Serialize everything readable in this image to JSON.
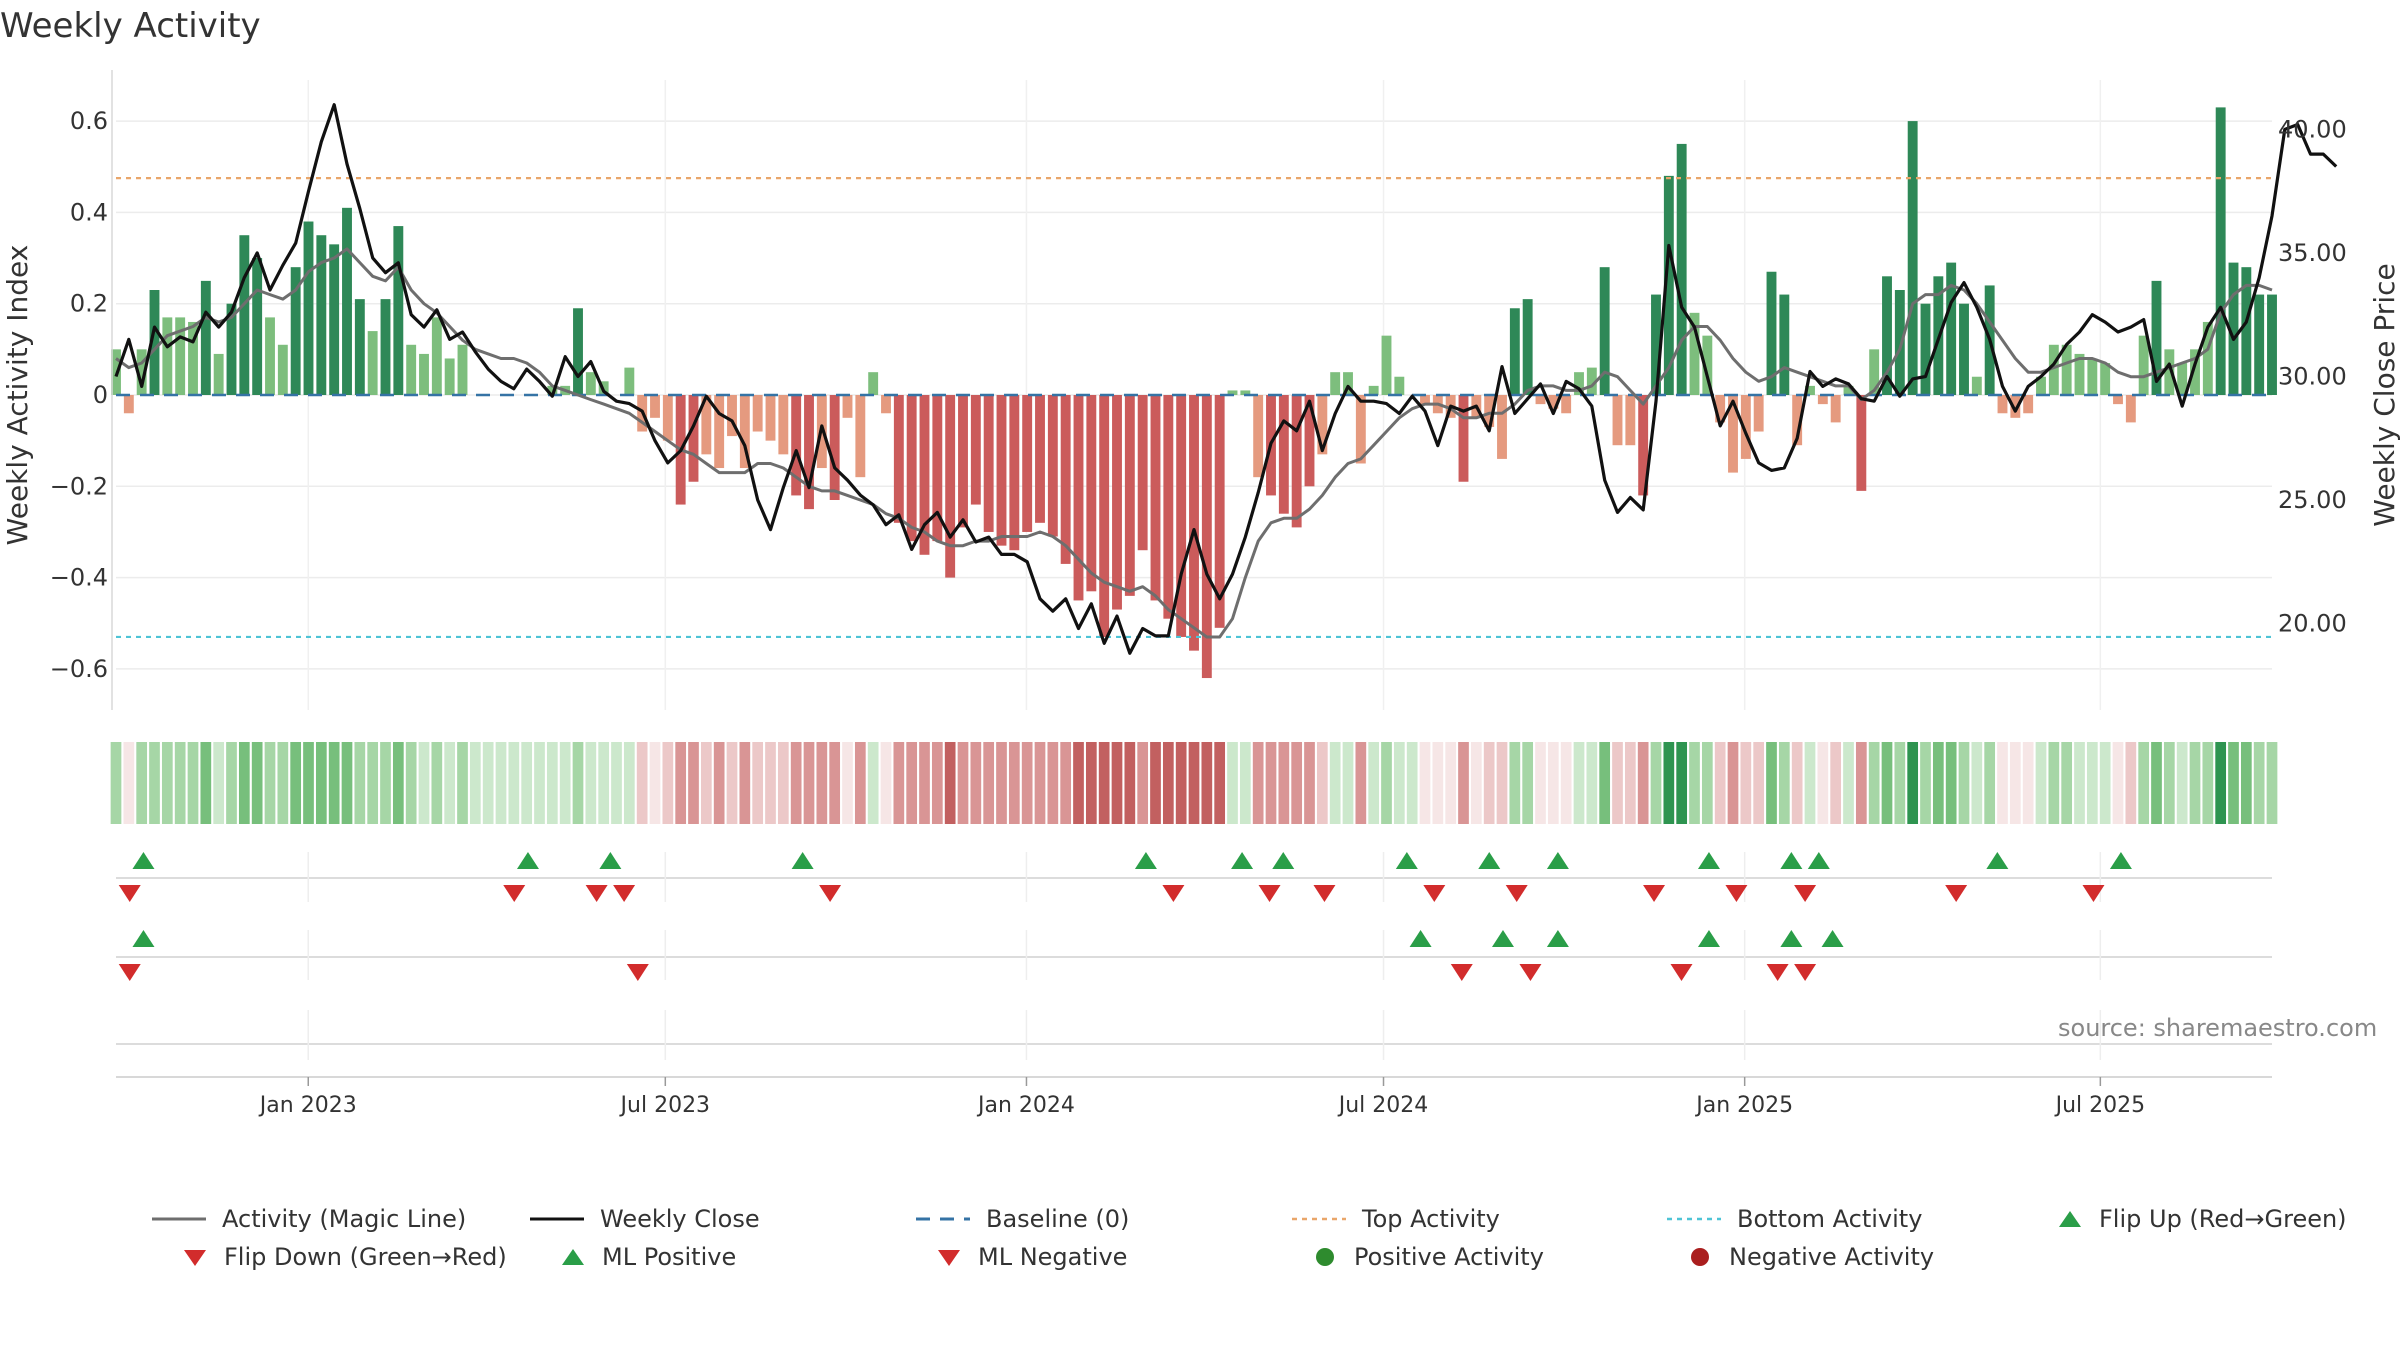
{
  "chart_data": {
    "type": "bar",
    "title": "Weekly Activity",
    "ylabel": "Weekly Activity Index",
    "y2label": "Weekly Close Price",
    "ylim": [
      -0.69,
      0.69
    ],
    "y2lim": [
      16.5,
      42.0
    ],
    "yticks": [
      "0.6",
      "0.4",
      "0.2",
      "0",
      "−0.2",
      "−0.4",
      "−0.6"
    ],
    "yticks_values": [
      0.6,
      0.4,
      0.2,
      0,
      -0.2,
      -0.4,
      -0.6
    ],
    "y2ticks": [
      "40.00",
      "35.00",
      "30.00",
      "25.00",
      "20.00"
    ],
    "y2ticks_values": [
      40,
      35,
      30,
      25,
      20
    ],
    "xlim_weeks": [
      0,
      157
    ],
    "xticks": [
      {
        "label": "Jan 2023",
        "week": 14
      },
      {
        "label": "Jul 2023",
        "week": 40
      },
      {
        "label": "Jan 2024",
        "week": 66.3
      },
      {
        "label": "Jul 2024",
        "week": 92.3
      },
      {
        "label": "Jan 2025",
        "week": 118.6
      },
      {
        "label": "Jul 2025",
        "week": 144.5
      }
    ],
    "top_activity": 0.475,
    "bottom_activity": -0.53,
    "baseline": 0,
    "activity": [
      0.1,
      -0.04,
      0.1,
      0.23,
      0.17,
      0.17,
      0.16,
      0.25,
      0.09,
      0.2,
      0.35,
      0.3,
      0.17,
      0.11,
      0.28,
      0.38,
      0.35,
      0.33,
      0.41,
      0.21,
      0.14,
      0.21,
      0.37,
      0.11,
      0.09,
      0.17,
      0.08,
      0.11,
      0.0,
      0.0,
      0.0,
      0.0,
      0.0,
      0.0,
      0.02,
      0.02,
      0.19,
      0.05,
      0.03,
      0.0,
      0.06,
      -0.08,
      -0.05,
      -0.1,
      -0.24,
      -0.19,
      -0.13,
      -0.16,
      -0.09,
      -0.16,
      -0.08,
      -0.1,
      -0.13,
      -0.22,
      -0.25,
      -0.16,
      -0.23,
      -0.05,
      -0.18,
      0.05,
      -0.04,
      -0.28,
      -0.32,
      -0.35,
      -0.32,
      -0.4,
      -0.29,
      -0.24,
      -0.3,
      -0.33,
      -0.34,
      -0.3,
      -0.28,
      -0.31,
      -0.37,
      -0.45,
      -0.43,
      -0.53,
      -0.47,
      -0.44,
      -0.34,
      -0.45,
      -0.49,
      -0.53,
      -0.56,
      -0.62,
      -0.51,
      0.01,
      0.01,
      -0.18,
      -0.22,
      -0.26,
      -0.29,
      -0.2,
      -0.13,
      0.05,
      0.05,
      -0.15,
      0.02,
      0.13,
      0.04,
      0.0,
      -0.02,
      -0.04,
      -0.05,
      -0.19,
      -0.05,
      -0.07,
      -0.14,
      0.19,
      0.21,
      -0.02,
      -0.03,
      -0.04,
      0.05,
      0.06,
      0.28,
      -0.11,
      -0.11,
      -0.22,
      0.22,
      0.48,
      0.55,
      0.18,
      0.13,
      -0.06,
      -0.17,
      -0.14,
      -0.08,
      0.27,
      0.22,
      -0.11,
      0.02,
      -0.02,
      -0.06,
      0.02,
      -0.21,
      0.1,
      0.26,
      0.23,
      0.6,
      0.2,
      0.26,
      0.29,
      0.2,
      0.04,
      0.24,
      -0.04,
      -0.05,
      -0.04,
      0.04,
      0.11,
      0.11,
      0.09,
      0.08,
      0.07,
      -0.02,
      -0.06,
      0.13,
      0.25,
      0.1,
      0.07,
      0.1,
      0.16,
      0.63,
      0.29,
      0.28,
      0.22,
      0.22
    ],
    "magic_line": [
      0.08,
      0.06,
      0.07,
      0.1,
      0.13,
      0.14,
      0.15,
      0.17,
      0.16,
      0.17,
      0.2,
      0.23,
      0.22,
      0.21,
      0.23,
      0.27,
      0.29,
      0.3,
      0.32,
      0.29,
      0.26,
      0.25,
      0.28,
      0.23,
      0.2,
      0.18,
      0.15,
      0.12,
      0.1,
      0.09,
      0.08,
      0.08,
      0.07,
      0.05,
      0.02,
      0.01,
      0.0,
      -0.01,
      -0.02,
      -0.03,
      -0.04,
      -0.06,
      -0.08,
      -0.1,
      -0.12,
      -0.13,
      -0.15,
      -0.17,
      -0.17,
      -0.17,
      -0.15,
      -0.15,
      -0.16,
      -0.18,
      -0.2,
      -0.21,
      -0.21,
      -0.22,
      -0.23,
      -0.24,
      -0.26,
      -0.27,
      -0.29,
      -0.3,
      -0.32,
      -0.33,
      -0.33,
      -0.32,
      -0.32,
      -0.31,
      -0.31,
      -0.31,
      -0.3,
      -0.31,
      -0.33,
      -0.36,
      -0.39,
      -0.41,
      -0.42,
      -0.43,
      -0.42,
      -0.44,
      -0.47,
      -0.49,
      -0.51,
      -0.53,
      -0.53,
      -0.49,
      -0.4,
      -0.32,
      -0.28,
      -0.27,
      -0.27,
      -0.25,
      -0.22,
      -0.18,
      -0.15,
      -0.14,
      -0.11,
      -0.08,
      -0.05,
      -0.03,
      -0.02,
      -0.02,
      -0.03,
      -0.05,
      -0.05,
      -0.04,
      -0.04,
      -0.02,
      0.01,
      0.02,
      0.02,
      0.01,
      0.01,
      0.02,
      0.05,
      0.04,
      0.01,
      -0.02,
      0.02,
      0.06,
      0.12,
      0.15,
      0.15,
      0.12,
      0.08,
      0.05,
      0.03,
      0.04,
      0.06,
      0.05,
      0.04,
      0.03,
      0.02,
      0.02,
      -0.01,
      0.01,
      0.05,
      0.1,
      0.2,
      0.22,
      0.22,
      0.24,
      0.23,
      0.2,
      0.16,
      0.12,
      0.08,
      0.05,
      0.05,
      0.06,
      0.07,
      0.08,
      0.08,
      0.07,
      0.05,
      0.04,
      0.04,
      0.05,
      0.06,
      0.07,
      0.08,
      0.1,
      0.18,
      0.22,
      0.24,
      0.24,
      0.23
    ],
    "weekly_close": [
      30.0,
      31.5,
      29.6,
      32.0,
      31.2,
      31.6,
      31.4,
      32.6,
      32.0,
      32.6,
      34.0,
      35.0,
      33.5,
      34.5,
      35.4,
      37.5,
      39.5,
      41.0,
      38.6,
      36.8,
      34.8,
      34.2,
      34.6,
      32.5,
      32.0,
      32.7,
      31.5,
      31.8,
      31.0,
      30.3,
      29.8,
      29.5,
      30.3,
      29.8,
      29.2,
      30.8,
      30.0,
      30.6,
      29.4,
      29.0,
      28.9,
      28.6,
      27.4,
      26.5,
      27.0,
      28.0,
      29.2,
      28.5,
      28.2,
      27.2,
      25.0,
      23.8,
      25.5,
      27.0,
      25.5,
      28.0,
      26.3,
      25.8,
      25.2,
      24.8,
      24.0,
      24.4,
      23.0,
      24.0,
      24.5,
      23.5,
      24.2,
      23.3,
      23.5,
      22.8,
      22.8,
      22.5,
      21.0,
      20.5,
      21.0,
      19.8,
      20.8,
      19.2,
      20.3,
      18.8,
      19.8,
      19.5,
      19.5,
      22.0,
      23.8,
      22.0,
      21.0,
      22.0,
      23.5,
      25.3,
      27.3,
      28.2,
      27.8,
      29.0,
      27.0,
      28.5,
      29.6,
      29.0,
      29.0,
      28.9,
      28.5,
      29.2,
      28.6,
      27.2,
      28.8,
      28.6,
      28.8,
      27.8,
      30.4,
      28.5,
      29.1,
      29.7,
      28.5,
      29.8,
      29.5,
      28.8,
      25.8,
      24.5,
      25.1,
      24.6,
      29.0,
      35.3,
      32.8,
      32.0,
      30.0,
      28.0,
      29.0,
      27.7,
      26.5,
      26.2,
      26.3,
      27.5,
      30.2,
      29.6,
      29.9,
      29.7,
      29.1,
      29.0,
      30.0,
      29.2,
      29.9,
      30.0,
      31.5,
      33.0,
      33.8,
      32.8,
      31.5,
      29.6,
      28.6,
      29.6,
      30.0,
      30.5,
      31.3,
      31.8,
      32.5,
      32.2,
      31.8,
      32.0,
      32.3,
      29.8,
      30.5,
      28.8,
      30.5,
      32.0,
      32.8,
      31.5,
      32.2,
      34.0,
      36.5,
      40.0,
      40.2,
      39.0,
      39.0,
      38.5
    ],
    "heat_strip": {
      "label": "Weekly activity heat strip",
      "scale": [
        "#c26060",
        "#d99595",
        "#ecc8c8",
        "#f6e6e6",
        "#cce8cc",
        "#a6d6a6",
        "#77bf7c",
        "#2e9450"
      ]
    },
    "flip_row_1": {
      "up_weeks": [
        1,
        29,
        35,
        49,
        74,
        81,
        84,
        93,
        99,
        104,
        115,
        121,
        123,
        136,
        145
      ],
      "down_weeks": [
        0,
        28,
        34,
        36,
        51,
        76,
        83,
        87,
        95,
        101,
        111,
        117,
        122,
        133,
        143
      ]
    },
    "flip_row_2": {
      "up_weeks": [
        1,
        94,
        100,
        104,
        115,
        121,
        124
      ],
      "down_weeks": [
        0,
        37,
        97,
        102,
        113,
        120,
        122
      ]
    },
    "colors": {
      "pos_strong": "#2e8857",
      "pos_light": "#7dbe7d",
      "neg_strong": "#cb5b5b",
      "neg_light": "#e59a7f",
      "magic_line": "#6e6e6e",
      "weekly_close": "#111111",
      "baseline": "#3573a5",
      "top_activity": "#e9a66a",
      "bottom_activity": "#4ec4d6",
      "flip_up": "#2a9e48",
      "flip_down": "#d22c2c",
      "positive_activity": "#2e8b2e",
      "negative_activity": "#aa1e1e"
    },
    "legend": [
      {
        "key": "magic_line",
        "label": "Activity (Magic Line)",
        "icon": "line-icon"
      },
      {
        "key": "weekly_close",
        "label": "Weekly Close",
        "icon": "line-icon"
      },
      {
        "key": "baseline",
        "label": "Baseline (0)",
        "icon": "dashed-line-icon"
      },
      {
        "key": "top_activity",
        "label": "Top Activity",
        "icon": "dotted-line-icon"
      },
      {
        "key": "bottom_activity",
        "label": "Bottom Activity",
        "icon": "dotted-line-icon"
      },
      {
        "key": "flip_up",
        "label": "Flip Up (Red→Green)",
        "icon": "triangle-up-icon"
      },
      {
        "key": "flip_down",
        "label": "Flip Down (Green→Red)",
        "icon": "triangle-down-icon"
      },
      {
        "key": "ml_positive",
        "label": "ML Positive",
        "icon": "triangle-up-icon"
      },
      {
        "key": "ml_negative",
        "label": "ML Negative",
        "icon": "triangle-down-icon"
      },
      {
        "key": "positive_activity",
        "label": "Positive Activity",
        "icon": "dot-icon"
      },
      {
        "key": "negative_activity",
        "label": "Negative Activity",
        "icon": "dot-icon"
      }
    ],
    "source": "source: sharemaestro.com"
  }
}
